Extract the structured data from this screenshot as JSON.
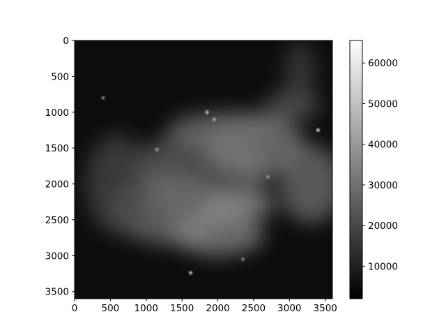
{
  "chart_data": {
    "type": "heatmap",
    "title": "",
    "xlabel": "",
    "ylabel": "",
    "colormap": "gray",
    "x_ticks": [
      0,
      500,
      1000,
      1500,
      2000,
      2500,
      3000,
      3500
    ],
    "x_tick_labels": [
      "0",
      "500",
      "1000",
      "1500",
      "2000",
      "2500",
      "3000",
      "3500"
    ],
    "xlim": [
      0,
      3600
    ],
    "y_ticks": [
      0,
      500,
      1000,
      1500,
      2000,
      2500,
      3000,
      3500
    ],
    "y_tick_labels": [
      "0",
      "500",
      "1000",
      "1500",
      "2000",
      "2500",
      "3000",
      "3500"
    ],
    "ylim": [
      3600,
      0
    ],
    "y_inverted": true,
    "colorbar": {
      "range": [
        2000,
        65535
      ],
      "ticks": [
        10000,
        20000,
        30000,
        40000,
        50000,
        60000
      ],
      "tick_labels": [
        "10000",
        "20000",
        "30000",
        "40000",
        "50000",
        "60000"
      ]
    },
    "regions": [
      {
        "cx": 1750,
        "cy": 1900,
        "rx": 950,
        "ry": 650,
        "value": 26000
      },
      {
        "cx": 2500,
        "cy": 1450,
        "rx": 700,
        "ry": 450,
        "value": 34000
      },
      {
        "cx": 1300,
        "cy": 2350,
        "rx": 800,
        "ry": 500,
        "value": 30000
      },
      {
        "cx": 3300,
        "cy": 2000,
        "rx": 450,
        "ry": 550,
        "value": 30000
      },
      {
        "cx": 2000,
        "cy": 2700,
        "rx": 650,
        "ry": 300,
        "value": 36000
      },
      {
        "cx": 2050,
        "cy": 1250,
        "rx": 750,
        "ry": 250,
        "value": 30000
      },
      {
        "cx": 600,
        "cy": 2000,
        "rx": 450,
        "ry": 700,
        "value": 20000
      },
      {
        "cx": 3050,
        "cy": 900,
        "rx": 380,
        "ry": 220,
        "value": 24000
      },
      {
        "cx": 3150,
        "cy": 400,
        "rx": 220,
        "ry": 380,
        "value": 18000
      },
      {
        "cx": 2300,
        "cy": 2300,
        "rx": 500,
        "ry": 200,
        "value": 38000
      }
    ],
    "stars": [
      {
        "x": 3400,
        "y": 1250,
        "value": 65000
      },
      {
        "x": 1850,
        "y": 1000,
        "value": 58000
      },
      {
        "x": 1950,
        "y": 1100,
        "value": 50000
      },
      {
        "x": 1620,
        "y": 3240,
        "value": 60000
      },
      {
        "x": 1150,
        "y": 1520,
        "value": 45000
      },
      {
        "x": 2700,
        "y": 1900,
        "value": 42000
      },
      {
        "x": 400,
        "y": 800,
        "value": 40000
      },
      {
        "x": 2350,
        "y": 3050,
        "value": 40000
      }
    ]
  }
}
